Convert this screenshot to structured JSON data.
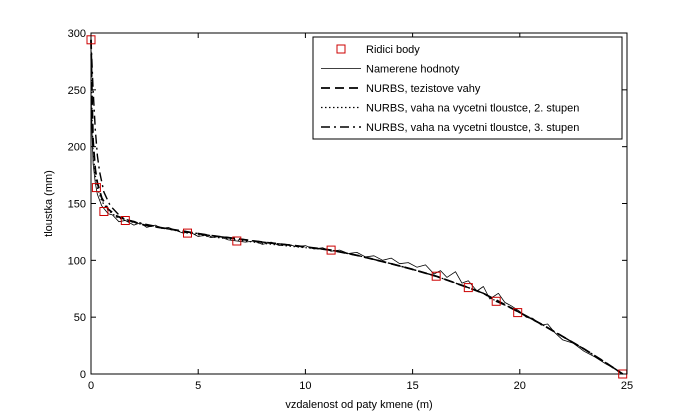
{
  "chart_data": {
    "type": "line",
    "xlabel": "vzdalenost od paty kmene (m)",
    "ylabel": "tloustka (mm)",
    "xlim": [
      0,
      25
    ],
    "ylim": [
      0,
      300
    ],
    "xticks": [
      0,
      5,
      10,
      15,
      20,
      25
    ],
    "yticks": [
      0,
      50,
      100,
      150,
      200,
      250,
      300
    ],
    "grid": false,
    "legend_position": "top-right",
    "series": [
      {
        "name": "Ridici body",
        "style": "markers",
        "marker": "square",
        "color": "#cc0000",
        "x": [
          0.0,
          0.25,
          0.6,
          1.6,
          4.5,
          6.8,
          11.2,
          16.1,
          17.6,
          18.9,
          19.9,
          24.8
        ],
        "y": [
          294,
          164,
          143,
          135,
          124,
          117,
          109,
          86,
          76,
          64,
          54,
          0
        ]
      },
      {
        "name": "Namerene hodnoty",
        "style": "solid",
        "width": 0.8,
        "color": "#000000",
        "x": [
          0.0,
          0.05,
          0.1,
          0.2,
          0.3,
          0.5,
          0.8,
          1.0,
          1.3,
          1.6,
          2.0,
          2.3,
          2.6,
          3.0,
          3.3,
          3.6,
          4.0,
          4.3,
          4.6,
          5.0,
          5.3,
          5.6,
          6.0,
          6.4,
          6.8,
          7.2,
          7.6,
          8.0,
          8.4,
          8.8,
          9.2,
          9.6,
          10.0,
          10.4,
          10.8,
          11.2,
          11.6,
          12.0,
          12.4,
          12.8,
          13.2,
          13.6,
          14.0,
          14.4,
          14.8,
          15.2,
          15.6,
          16.0,
          16.3,
          16.6,
          17.0,
          17.3,
          17.6,
          18.0,
          18.3,
          18.6,
          19.0,
          19.3,
          19.6,
          20.0,
          20.3,
          20.6,
          21.0,
          21.3,
          21.6,
          22.0,
          22.5,
          23.0,
          23.5,
          24.0,
          24.5,
          24.8
        ],
        "y": [
          250,
          210,
          185,
          168,
          158,
          148,
          141,
          140,
          134,
          135,
          131,
          133,
          129,
          131,
          128,
          129,
          126,
          124,
          125,
          121,
          122,
          120,
          121,
          118,
          117,
          116,
          117,
          114,
          116,
          113,
          114,
          112,
          113,
          110,
          111,
          108,
          109,
          106,
          107,
          103,
          104,
          100,
          102,
          97,
          98,
          94,
          96,
          88,
          91,
          85,
          90,
          80,
          82,
          73,
          77,
          66,
          71,
          63,
          60,
          55,
          50,
          49,
          43,
          44,
          37,
          30,
          27,
          20,
          15,
          9,
          4,
          0
        ]
      },
      {
        "name": "NURBS, tezistove vahy",
        "style": "dashed",
        "width": 1.8,
        "color": "#000000",
        "x": [
          0.0,
          0.05,
          0.1,
          0.2,
          0.3,
          0.5,
          0.8,
          1.2,
          1.6,
          2.5,
          3.5,
          4.5,
          5.5,
          6.8,
          8.0,
          9.5,
          11.2,
          12.5,
          14.0,
          15.0,
          16.1,
          17.0,
          17.6,
          18.3,
          18.9,
          19.5,
          20.0,
          21.0,
          22.0,
          23.0,
          24.0,
          24.8
        ],
        "y": [
          294,
          240,
          205,
          180,
          168,
          155,
          145,
          139,
          136,
          131,
          128,
          125,
          122,
          119,
          116,
          113,
          109,
          104,
          97,
          92,
          86,
          80,
          76,
          71,
          65,
          59,
          54,
          44,
          33,
          22,
          10,
          0
        ]
      },
      {
        "name": "NURBS, vaha na vycetni tloustce, 2. stupen",
        "style": "dotted",
        "width": 1.2,
        "color": "#000000",
        "x": [
          0.0,
          0.05,
          0.1,
          0.2,
          0.3,
          0.5,
          0.8,
          1.2,
          1.6,
          2.5,
          3.5,
          4.5,
          5.5,
          6.8,
          8.0,
          9.5,
          11.2,
          12.5,
          14.0,
          15.0,
          16.1,
          17.0,
          17.6,
          18.3,
          18.9,
          19.5,
          20.0,
          21.0,
          22.0,
          23.0,
          24.0,
          24.8
        ],
        "y": [
          294,
          225,
          195,
          175,
          164,
          152,
          144,
          138,
          135,
          131,
          128,
          124,
          121,
          118,
          115,
          112,
          109,
          104,
          97,
          92,
          86,
          80,
          76,
          71,
          64,
          59,
          54,
          44,
          33,
          22,
          10,
          0
        ]
      },
      {
        "name": "NURBS, vaha na vycetni tloustce, 3. stupen",
        "style": "dashdot",
        "width": 1.4,
        "color": "#000000",
        "x": [
          0.0,
          0.1,
          0.2,
          0.3,
          0.4,
          0.6,
          0.9,
          1.3,
          1.6,
          2.5,
          3.5,
          4.5,
          5.5,
          6.8,
          8.0,
          9.5,
          11.2,
          12.5,
          14.0,
          15.0,
          16.1,
          17.0,
          17.6,
          18.3,
          18.9,
          19.5,
          20.0,
          21.0,
          22.0,
          23.0,
          24.0,
          24.8
        ],
        "y": [
          294,
          250,
          215,
          192,
          178,
          160,
          148,
          140,
          136,
          132,
          128,
          125,
          122,
          119,
          116,
          113,
          109,
          104,
          97,
          92,
          86,
          80,
          76,
          71,
          64,
          59,
          54,
          44,
          33,
          22,
          10,
          0
        ]
      }
    ]
  }
}
